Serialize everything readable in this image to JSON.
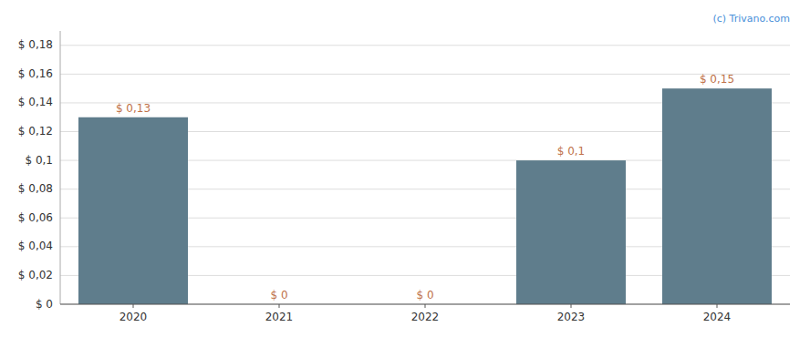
{
  "chart_data": {
    "type": "bar",
    "categories": [
      "2020",
      "2021",
      "2022",
      "2023",
      "2024"
    ],
    "values": [
      0.13,
      0.0,
      0.0,
      0.1,
      0.15
    ],
    "value_labels": [
      "$ 0,13",
      "$ 0",
      "$ 0",
      "$ 0,1",
      "$ 0,15"
    ],
    "data_labels": true,
    "color": "#5f7d8c",
    "ylim": [
      0,
      0.19
    ],
    "yticks": [
      {
        "value": 0.0,
        "label": "$ 0"
      },
      {
        "value": 0.02,
        "label": "$ 0,02"
      },
      {
        "value": 0.04,
        "label": "$ 0,04"
      },
      {
        "value": 0.06,
        "label": "$ 0,06"
      },
      {
        "value": 0.08,
        "label": "$ 0,08"
      },
      {
        "value": 0.1,
        "label": "$ 0,1"
      },
      {
        "value": 0.12,
        "label": "$ 0,12"
      },
      {
        "value": 0.14,
        "label": "$ 0,14"
      },
      {
        "value": 0.16,
        "label": "$ 0,16"
      },
      {
        "value": 0.18,
        "label": "$ 0,18"
      }
    ],
    "grid": true,
    "annotations": [
      "(c) Trivano.com"
    ]
  }
}
